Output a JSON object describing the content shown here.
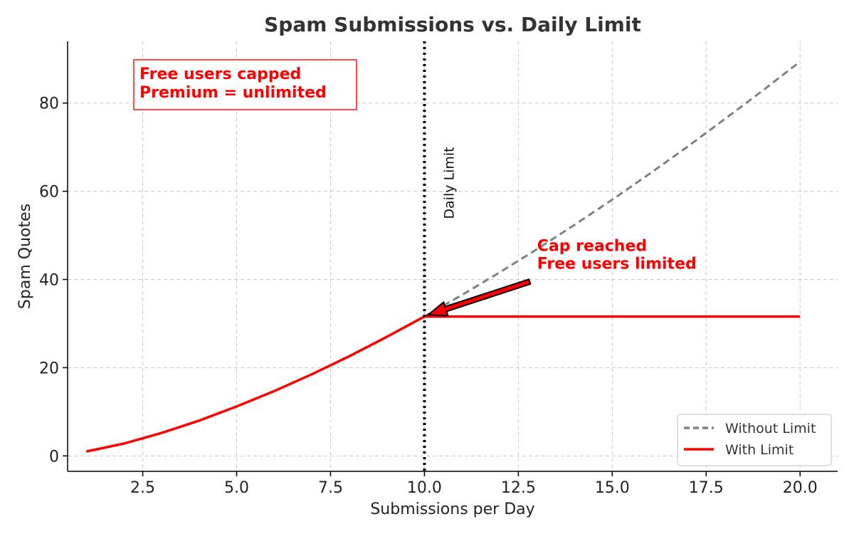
{
  "chart_data": {
    "type": "line",
    "title": "Spam Submissions vs. Daily Limit",
    "xlabel": "Submissions per Day",
    "ylabel": "Spam Quotes",
    "xlim": [
      0.5,
      21.0
    ],
    "ylim": [
      -3.5,
      94
    ],
    "xticks": [
      2.5,
      5.0,
      7.5,
      10.0,
      12.5,
      15.0,
      17.5,
      20.0
    ],
    "xtick_labels": [
      "2.5",
      "5.0",
      "7.5",
      "10.0",
      "12.5",
      "15.0",
      "17.5",
      "20.0"
    ],
    "yticks": [
      0,
      20,
      40,
      60,
      80
    ],
    "ytick_labels": [
      "0",
      "20",
      "40",
      "60",
      "80"
    ],
    "grid": true,
    "legend_position": "bottom-right",
    "series": [
      {
        "name": "Without Limit",
        "color": "#808080",
        "style": "dashed",
        "x": [
          1,
          2,
          3,
          4,
          5,
          6,
          7,
          8,
          9,
          10,
          11,
          12,
          13,
          14,
          15,
          16,
          17,
          18,
          19,
          20
        ],
        "y": [
          1.0,
          2.8,
          5.2,
          8.0,
          11.2,
          14.7,
          18.5,
          22.6,
          27.0,
          31.6,
          36.5,
          41.6,
          46.9,
          52.4,
          58.1,
          64.0,
          70.1,
          76.4,
          82.8,
          89.4
        ]
      },
      {
        "name": "With Limit",
        "color": "#ff0000",
        "style": "solid",
        "x": [
          1,
          2,
          3,
          4,
          5,
          6,
          7,
          8,
          9,
          10,
          11,
          12,
          13,
          14,
          15,
          16,
          17,
          18,
          19,
          20
        ],
        "y": [
          1.0,
          2.8,
          5.2,
          8.0,
          11.2,
          14.7,
          18.5,
          22.6,
          27.0,
          31.6,
          31.6,
          31.6,
          31.6,
          31.6,
          31.6,
          31.6,
          31.6,
          31.6,
          31.6,
          31.6
        ]
      }
    ],
    "vline": {
      "x": 10.0,
      "label": "Daily Limit",
      "color": "#000000",
      "style": "dotted"
    },
    "annotations": [
      {
        "lines": [
          "Cap reached",
          "Free users limited"
        ],
        "color": "#ff0000",
        "text_at": [
          13.0,
          46.5
        ],
        "arrow_from": [
          12.8,
          39.5
        ],
        "arrow_to": [
          10.1,
          32.0
        ]
      },
      {
        "lines": [
          "Free users capped",
          "Premium = unlimited"
        ],
        "color": "#ff0000",
        "boxed": true
      }
    ]
  }
}
